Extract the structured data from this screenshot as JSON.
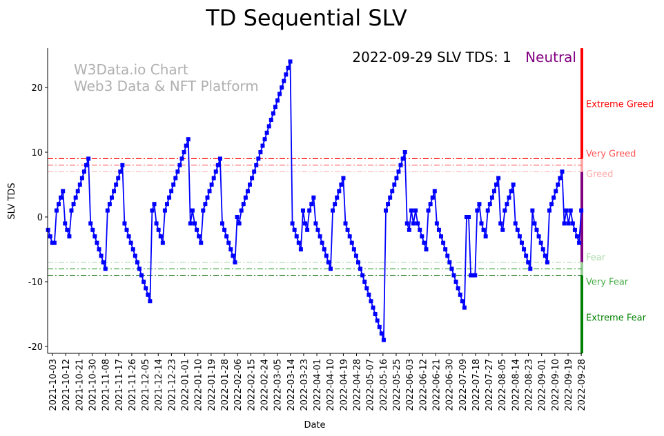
{
  "chart_data": {
    "type": "line",
    "title": "TD Sequential SLV",
    "xlabel": "Date",
    "ylabel": "SLV TDS",
    "ylim": [
      -21.06,
      26.06
    ],
    "xlim_days_from_first_tick": [
      -3.3,
      360.4
    ],
    "grid": false,
    "yticks": [
      -20,
      -10,
      0,
      10,
      20
    ],
    "xticks": [
      "2021-10-03",
      "2021-10-12",
      "2021-10-21",
      "2021-10-30",
      "2021-11-08",
      "2021-11-17",
      "2021-11-26",
      "2021-12-05",
      "2021-12-14",
      "2021-12-23",
      "2022-01-01",
      "2022-01-10",
      "2022-01-19",
      "2022-01-28",
      "2022-02-06",
      "2022-02-15",
      "2022-02-24",
      "2022-03-05",
      "2022-03-14",
      "2022-03-23",
      "2022-04-01",
      "2022-04-10",
      "2022-04-19",
      "2022-04-28",
      "2022-05-07",
      "2022-05-16",
      "2022-05-25",
      "2022-06-03",
      "2022-06-12",
      "2022-06-21",
      "2022-06-30",
      "2022-07-09",
      "2022-07-18",
      "2022-07-27",
      "2022-08-05",
      "2022-08-14",
      "2022-08-23",
      "2022-09-01",
      "2022-09-10",
      "2022-09-19",
      "2022-09-28"
    ],
    "series": [
      {
        "name": "SLV TDS",
        "color": "#0000ff",
        "marker": "square",
        "first_point_day": -3,
        "last_point_day": 360,
        "values": [
          -2,
          -3,
          -4,
          -4,
          1,
          2,
          3,
          4,
          -1,
          -2,
          -3,
          1,
          2,
          3,
          4,
          5,
          6,
          7,
          8,
          9,
          -1,
          -2,
          -3,
          -4,
          -5,
          -6,
          -7,
          -8,
          1,
          2,
          3,
          4,
          5,
          6,
          7,
          8,
          -1,
          -2,
          -3,
          -4,
          -5,
          -6,
          -7,
          -8,
          -9,
          -10,
          -11,
          -12,
          -13,
          1,
          2,
          -1,
          -2,
          -3,
          -4,
          1,
          2,
          3,
          4,
          5,
          6,
          7,
          8,
          9,
          10,
          11,
          12,
          -1,
          1,
          -1,
          -2,
          -3,
          -4,
          1,
          2,
          3,
          4,
          5,
          6,
          7,
          8,
          9,
          -1,
          -2,
          -3,
          -4,
          -5,
          -6,
          -7,
          0,
          -1,
          1,
          2,
          3,
          4,
          5,
          6,
          7,
          8,
          9,
          10,
          11,
          12,
          13,
          14,
          15,
          16,
          17,
          18,
          19,
          20,
          21,
          22,
          23,
          24,
          -1,
          -2,
          -3,
          -4,
          -5,
          1,
          -1,
          -2,
          1,
          2,
          3,
          -1,
          -2,
          -3,
          -4,
          -5,
          -6,
          -7,
          -8,
          1,
          2,
          3,
          4,
          5,
          6,
          -1,
          -2,
          -3,
          -4,
          -5,
          -6,
          -7,
          -8,
          -9,
          -10,
          -11,
          -12,
          -13,
          -14,
          -15,
          -16,
          -17,
          -18,
          -19,
          1,
          2,
          3,
          4,
          5,
          6,
          7,
          8,
          9,
          10,
          -1,
          -2,
          1,
          -1,
          1,
          -1,
          -2,
          -3,
          -4,
          -5,
          1,
          2,
          3,
          4,
          -1,
          -2,
          -3,
          -4,
          -5,
          -6,
          -7,
          -8,
          -9,
          -10,
          -11,
          -12,
          -13,
          -14,
          0,
          0,
          -9,
          -9,
          -9,
          1,
          2,
          -1,
          -2,
          -3,
          1,
          2,
          3,
          4,
          5,
          6,
          -1,
          -2,
          1,
          2,
          3,
          4,
          5,
          -1,
          -2,
          -3,
          -4,
          -5,
          -6,
          -7,
          -8,
          1,
          -1,
          -2,
          -3,
          -4,
          -5,
          -6,
          -7,
          1,
          2,
          3,
          4,
          5,
          6,
          7,
          -1,
          1,
          -1,
          1,
          -1,
          -2,
          -3,
          -4,
          1
        ]
      }
    ],
    "thresholds": [
      {
        "label": "Very Greed",
        "value": 9,
        "color": "#ff0000",
        "text_color": "#ff5555"
      },
      {
        "label": "Greed",
        "value": 8,
        "color": "#ff6666",
        "text_color": "#ffaaaa"
      },
      {
        "label": "",
        "value": 7,
        "color": "#ffb0b0"
      },
      {
        "label": "Fear",
        "value": -7,
        "color": "#a8d8a8",
        "text_color": "#a8d8a8"
      },
      {
        "label": "Very Fear",
        "value": -8,
        "color": "#44aa44",
        "text_color": "#44aa44"
      },
      {
        "label": "",
        "value": -9,
        "color": "#006400"
      }
    ],
    "zones": [
      {
        "label": "Extreme Greed",
        "from": 9,
        "to": 26.06,
        "color": "#ff0000",
        "label_value": 17.5
      },
      {
        "label": "Extreme Fear",
        "from": -21.06,
        "to": -9,
        "color": "#008000",
        "label_value": -15.5
      }
    ],
    "neutral_band": {
      "from": -7,
      "to": 7,
      "color": "#800080"
    },
    "annotation": {
      "text": "2022-09-29 SLV TDS: 1",
      "status": "Neutral",
      "status_color": "#800080"
    },
    "watermark": {
      "line1": "W3Data.io Chart",
      "line2": "Web3 Data & NFT Platform"
    }
  }
}
